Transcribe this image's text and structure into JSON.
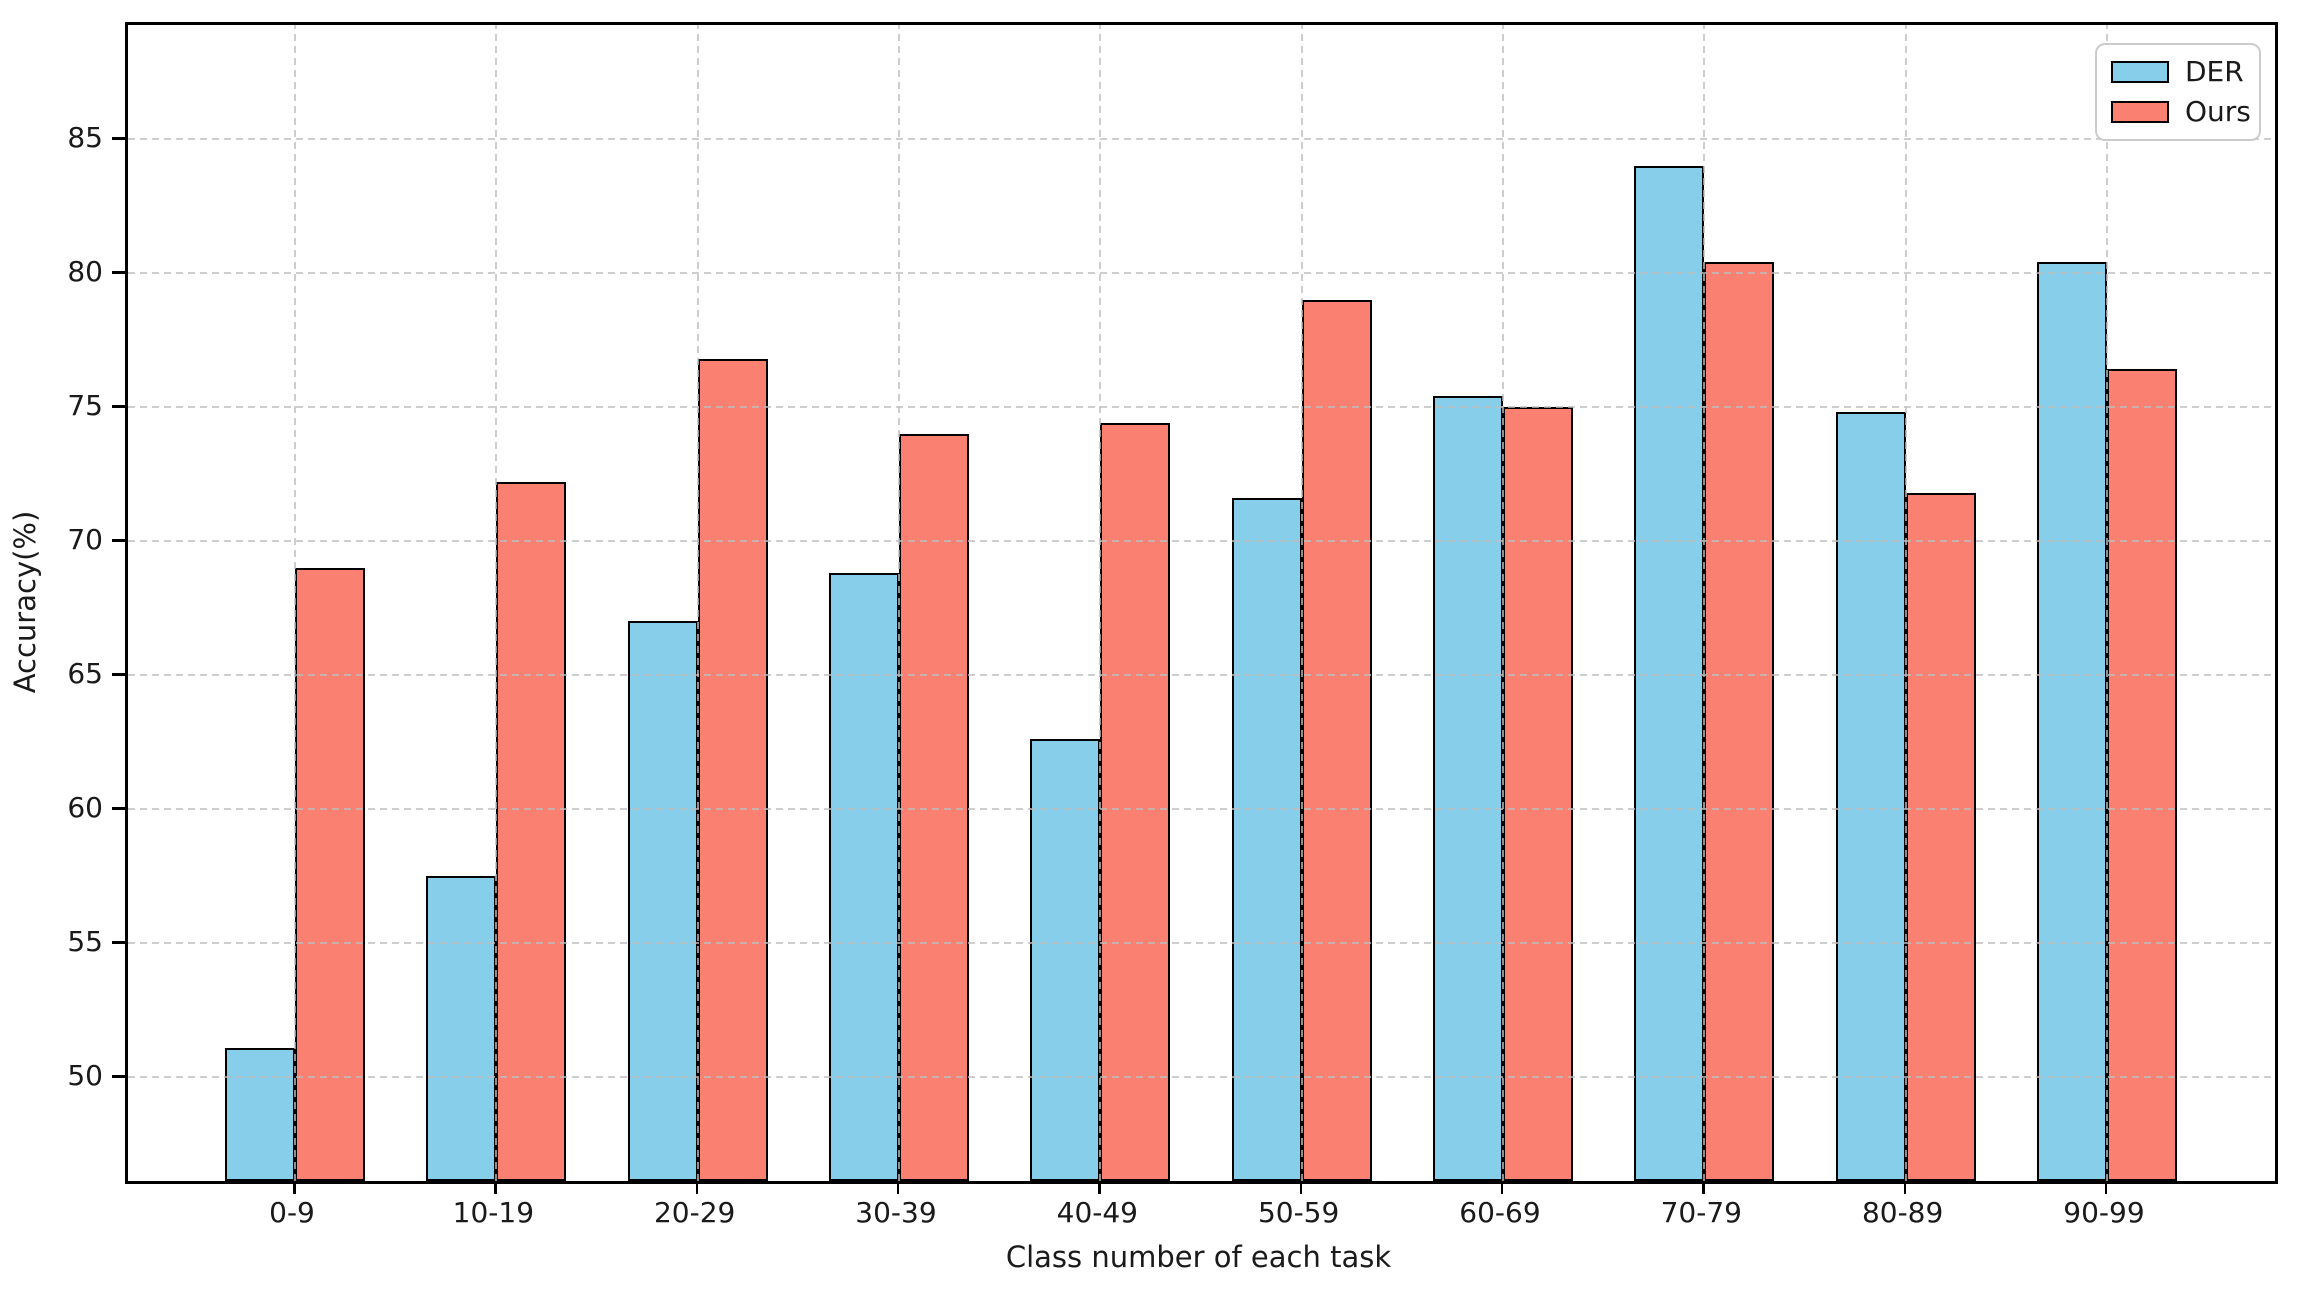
{
  "chart_data": {
    "type": "bar",
    "title": "",
    "xlabel": "Class number of each task",
    "ylabel": "Accuracy(%)",
    "categories": [
      "0-9",
      "10-19",
      "20-29",
      "30-39",
      "40-49",
      "50-59",
      "60-69",
      "70-79",
      "80-89",
      "90-99"
    ],
    "series": [
      {
        "name": "DER",
        "color": "#87CEEB",
        "values": [
          51.1,
          57.5,
          67.0,
          68.8,
          62.6,
          71.6,
          75.4,
          84.0,
          74.8,
          80.4
        ]
      },
      {
        "name": "Ours",
        "color": "#FA8072",
        "values": [
          69.0,
          72.2,
          76.8,
          74.0,
          74.4,
          79.0,
          75.0,
          80.4,
          71.8,
          76.4
        ]
      }
    ],
    "yticks": [
      50,
      55,
      60,
      65,
      70,
      75,
      80,
      85
    ],
    "ylim": [
      46.1,
      89.3
    ],
    "bar_width_fraction": 0.35,
    "grid": "dashed both axes, drawn above bars",
    "legend": {
      "position": "upper right",
      "entries": [
        "DER",
        "Ours"
      ]
    },
    "colors": {
      "bar_edge": "#000000",
      "grid": "#bebebe",
      "axes_edge": "#000000",
      "background": "#ffffff"
    }
  }
}
